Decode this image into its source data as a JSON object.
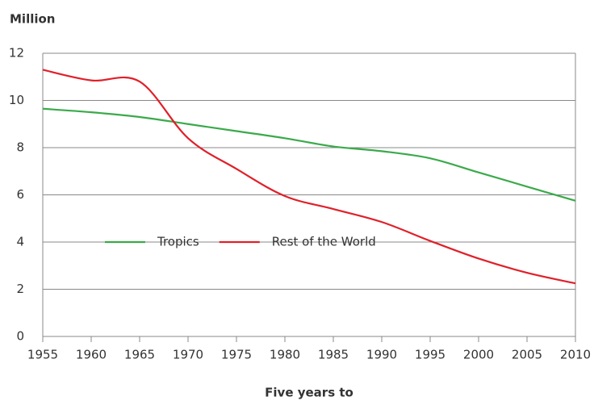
{
  "chart_data": {
    "type": "line",
    "y_label": "Million",
    "x_label": "Five years to",
    "x": [
      1955,
      1960,
      1965,
      1970,
      1975,
      1980,
      1985,
      1990,
      1995,
      2000,
      2005,
      2010
    ],
    "series": [
      {
        "name": "Tropics",
        "color": "#3aaa4a",
        "values": [
          9.65,
          9.5,
          9.3,
          9.0,
          8.7,
          8.4,
          8.05,
          7.85,
          7.55,
          6.95,
          6.35,
          5.75
        ]
      },
      {
        "name": "Rest of the World",
        "color": "#e0202a",
        "values": [
          11.3,
          10.85,
          10.8,
          8.4,
          7.1,
          5.95,
          5.4,
          4.85,
          4.05,
          3.3,
          2.7,
          2.25
        ]
      }
    ],
    "xlim": [
      1955,
      2010
    ],
    "xticks": [
      1955,
      1960,
      1965,
      1970,
      1975,
      1980,
      1985,
      1990,
      1995,
      2000,
      2005,
      2010
    ],
    "ylim": [
      0,
      12
    ],
    "yticks": [
      0,
      2,
      4,
      6,
      8,
      10,
      12
    ],
    "grid": true,
    "legend": "bottom-left"
  }
}
